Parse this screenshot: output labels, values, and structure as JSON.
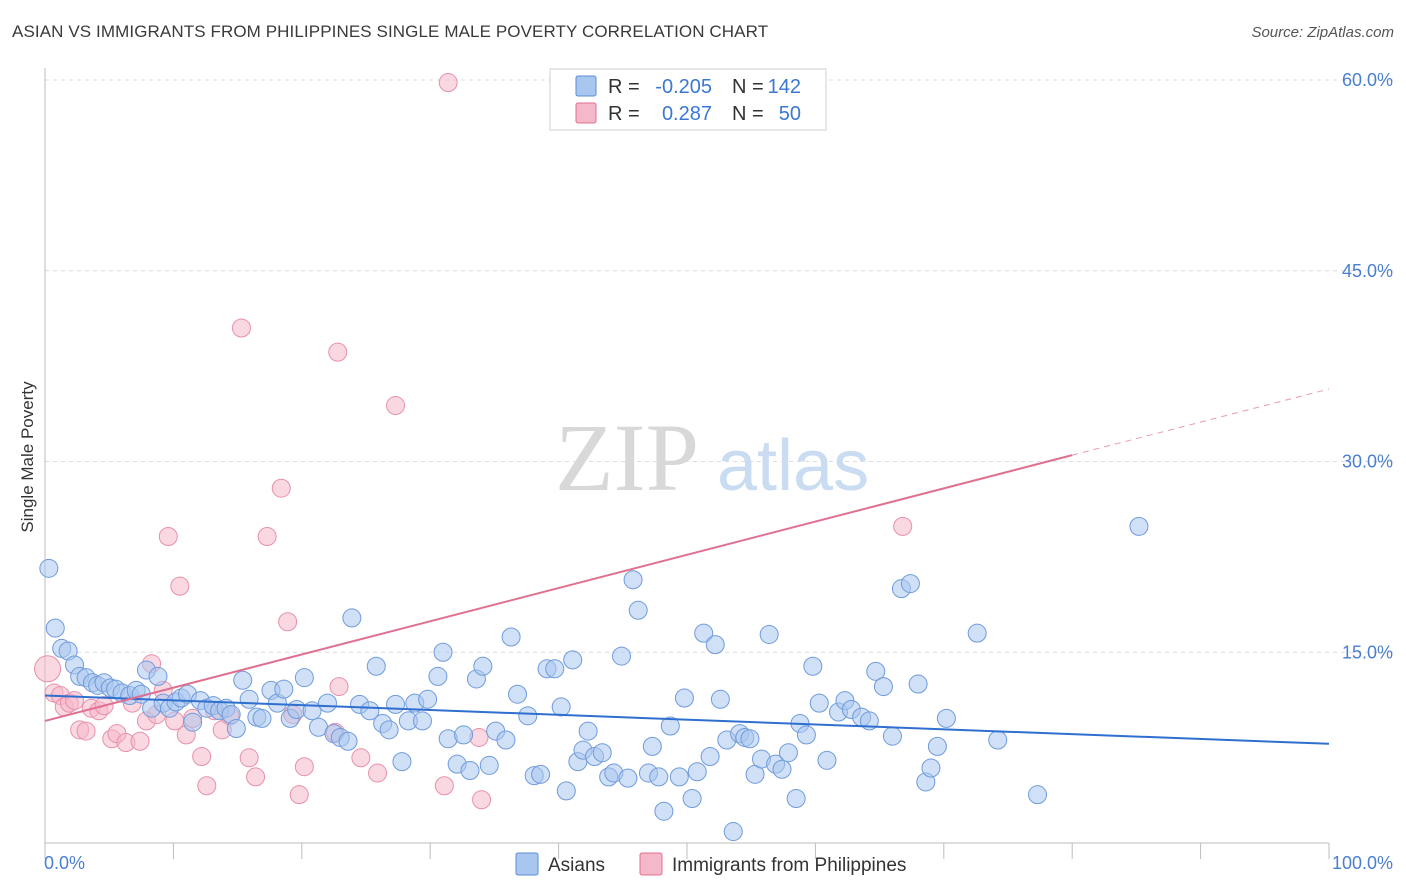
{
  "title": "ASIAN VS IMMIGRANTS FROM PHILIPPINES SINGLE MALE POVERTY CORRELATION CHART",
  "source": "Source: ZipAtlas.com",
  "watermark": {
    "zip": "ZIP",
    "atlas": "atlas"
  },
  "colors": {
    "blue": "#5b8fd9",
    "blue_fill": "#a9c6ee",
    "pink": "#e0708f",
    "pink_fill": "#f5b8ca",
    "tick_text": "#4a7fd0"
  },
  "legend_top": [
    {
      "r_label": "R =",
      "r_value": "-0.205",
      "n_label": "N =",
      "n_value": "142"
    },
    {
      "r_label": "R =",
      "r_value": "0.287",
      "n_label": "N =",
      "n_value": "50"
    }
  ],
  "legend_bottom": [
    "Asians",
    "Immigrants from Philippines"
  ],
  "chart_data": {
    "type": "scatter",
    "title": "ASIAN VS IMMIGRANTS FROM PHILIPPINES SINGLE MALE POVERTY CORRELATION CHART",
    "xlabel": "",
    "ylabel": "Single Male Poverty",
    "xlim": [
      0,
      100
    ],
    "ylim": [
      0,
      60
    ],
    "x_tick_labels": [
      "0.0%",
      "100.0%"
    ],
    "y_ticks": [
      15,
      30,
      45,
      60
    ],
    "y_tick_labels": [
      "15.0%",
      "30.0%",
      "45.0%",
      "60.0%"
    ],
    "grid": true,
    "legend_position": "top-center",
    "series": [
      {
        "name": "Asians",
        "r": -0.205,
        "n": 142,
        "trend": {
          "x0": 0,
          "y0": 11.6,
          "x1": 100,
          "y1": 7.8
        },
        "points": [
          [
            0.3,
            21.6
          ],
          [
            0.8,
            16.9
          ],
          [
            1.3,
            15.3
          ],
          [
            1.8,
            15.1
          ],
          [
            2.3,
            14.0
          ],
          [
            2.7,
            13.1
          ],
          [
            3.2,
            13.0
          ],
          [
            3.7,
            12.6
          ],
          [
            4.1,
            12.4
          ],
          [
            4.6,
            12.6
          ],
          [
            5.1,
            12.2
          ],
          [
            5.5,
            12.1
          ],
          [
            6.0,
            11.8
          ],
          [
            6.6,
            11.6
          ],
          [
            7.1,
            12.0
          ],
          [
            7.5,
            11.7
          ],
          [
            7.9,
            13.6
          ],
          [
            8.3,
            10.6
          ],
          [
            8.8,
            13.1
          ],
          [
            9.2,
            11.0
          ],
          [
            9.7,
            10.6
          ],
          [
            10.2,
            11.1
          ],
          [
            10.6,
            11.4
          ],
          [
            11.1,
            11.7
          ],
          [
            11.5,
            9.5
          ],
          [
            12.1,
            11.2
          ],
          [
            12.6,
            10.6
          ],
          [
            13.1,
            10.8
          ],
          [
            13.6,
            10.4
          ],
          [
            14.1,
            10.6
          ],
          [
            14.5,
            10.1
          ],
          [
            14.9,
            9.0
          ],
          [
            15.4,
            12.8
          ],
          [
            15.9,
            11.3
          ],
          [
            16.5,
            9.9
          ],
          [
            16.9,
            9.8
          ],
          [
            17.6,
            12.0
          ],
          [
            18.1,
            11.0
          ],
          [
            18.6,
            12.1
          ],
          [
            19.1,
            9.8
          ],
          [
            19.6,
            10.5
          ],
          [
            20.2,
            13.0
          ],
          [
            20.8,
            10.4
          ],
          [
            21.3,
            9.1
          ],
          [
            22.0,
            11.0
          ],
          [
            22.5,
            8.6
          ],
          [
            23.0,
            8.3
          ],
          [
            23.6,
            8.0
          ],
          [
            23.9,
            17.7
          ],
          [
            24.5,
            10.9
          ],
          [
            25.3,
            10.4
          ],
          [
            25.8,
            13.9
          ],
          [
            26.3,
            9.4
          ],
          [
            26.8,
            8.9
          ],
          [
            27.3,
            10.9
          ],
          [
            27.8,
            6.4
          ],
          [
            28.3,
            9.6
          ],
          [
            28.8,
            11.0
          ],
          [
            29.4,
            9.6
          ],
          [
            29.8,
            11.3
          ],
          [
            30.6,
            13.1
          ],
          [
            31.0,
            15.0
          ],
          [
            31.4,
            8.2
          ],
          [
            32.1,
            6.2
          ],
          [
            32.6,
            8.5
          ],
          [
            33.1,
            5.7
          ],
          [
            33.6,
            12.9
          ],
          [
            34.1,
            13.9
          ],
          [
            34.6,
            6.1
          ],
          [
            35.1,
            8.8
          ],
          [
            35.9,
            8.1
          ],
          [
            36.3,
            16.2
          ],
          [
            36.8,
            11.7
          ],
          [
            37.6,
            10.0
          ],
          [
            38.1,
            5.3
          ],
          [
            38.6,
            5.4
          ],
          [
            39.1,
            13.7
          ],
          [
            39.7,
            13.7
          ],
          [
            40.2,
            10.7
          ],
          [
            40.6,
            4.1
          ],
          [
            41.1,
            14.4
          ],
          [
            41.5,
            6.4
          ],
          [
            41.9,
            7.3
          ],
          [
            42.3,
            8.8
          ],
          [
            42.8,
            6.8
          ],
          [
            43.4,
            7.1
          ],
          [
            43.9,
            5.2
          ],
          [
            44.3,
            5.5
          ],
          [
            44.9,
            14.7
          ],
          [
            45.4,
            5.1
          ],
          [
            45.8,
            20.7
          ],
          [
            46.2,
            18.3
          ],
          [
            47.0,
            5.5
          ],
          [
            47.3,
            7.6
          ],
          [
            47.8,
            5.2
          ],
          [
            48.2,
            2.5
          ],
          [
            48.7,
            9.2
          ],
          [
            49.4,
            5.2
          ],
          [
            49.8,
            11.4
          ],
          [
            50.4,
            3.5
          ],
          [
            50.8,
            5.6
          ],
          [
            51.3,
            16.5
          ],
          [
            51.8,
            6.8
          ],
          [
            52.2,
            15.6
          ],
          [
            52.6,
            11.3
          ],
          [
            53.1,
            8.1
          ],
          [
            53.6,
            0.9
          ],
          [
            54.1,
            8.6
          ],
          [
            54.5,
            8.3
          ],
          [
            54.9,
            8.2
          ],
          [
            55.3,
            5.4
          ],
          [
            55.8,
            6.6
          ],
          [
            56.4,
            16.4
          ],
          [
            56.9,
            6.2
          ],
          [
            57.4,
            5.8
          ],
          [
            57.9,
            7.1
          ],
          [
            58.5,
            3.5
          ],
          [
            58.8,
            9.4
          ],
          [
            59.3,
            8.5
          ],
          [
            59.8,
            13.9
          ],
          [
            60.3,
            11.0
          ],
          [
            60.9,
            6.5
          ],
          [
            61.8,
            10.3
          ],
          [
            62.3,
            11.2
          ],
          [
            62.8,
            10.5
          ],
          [
            63.6,
            9.9
          ],
          [
            64.2,
            9.6
          ],
          [
            64.7,
            13.5
          ],
          [
            65.3,
            12.3
          ],
          [
            66.0,
            8.4
          ],
          [
            66.7,
            20.0
          ],
          [
            67.4,
            20.4
          ],
          [
            68.0,
            12.5
          ],
          [
            68.6,
            4.8
          ],
          [
            69.0,
            5.9
          ],
          [
            69.5,
            7.6
          ],
          [
            70.2,
            9.8
          ],
          [
            72.6,
            16.5
          ],
          [
            74.2,
            8.1
          ],
          [
            77.3,
            3.8
          ],
          [
            85.2,
            24.9
          ]
        ]
      },
      {
        "name": "Immigrants from Philippines",
        "r": 0.287,
        "n": 50,
        "trend": {
          "x0": 0,
          "y0": 9.6,
          "x1": 80,
          "y1": 30.5,
          "dash_to_x": 100,
          "dash_to_y": 35.7
        },
        "points": [
          [
            0.2,
            13.7
          ],
          [
            0.7,
            11.8
          ],
          [
            1.2,
            11.6
          ],
          [
            1.5,
            10.7
          ],
          [
            1.9,
            11.0
          ],
          [
            2.3,
            11.2
          ],
          [
            2.7,
            8.9
          ],
          [
            3.2,
            8.8
          ],
          [
            3.6,
            10.6
          ],
          [
            4.2,
            10.4
          ],
          [
            4.6,
            10.8
          ],
          [
            5.2,
            8.2
          ],
          [
            5.6,
            8.6
          ],
          [
            6.3,
            7.9
          ],
          [
            6.8,
            11.0
          ],
          [
            7.4,
            8.0
          ],
          [
            7.9,
            9.6
          ],
          [
            8.3,
            14.1
          ],
          [
            8.7,
            10.1
          ],
          [
            9.2,
            12.0
          ],
          [
            9.6,
            24.1
          ],
          [
            10.1,
            9.6
          ],
          [
            10.5,
            20.2
          ],
          [
            11.0,
            8.5
          ],
          [
            11.5,
            9.8
          ],
          [
            12.2,
            6.8
          ],
          [
            12.6,
            4.5
          ],
          [
            13.2,
            10.4
          ],
          [
            13.8,
            8.9
          ],
          [
            14.4,
            10.0
          ],
          [
            15.3,
            40.5
          ],
          [
            15.9,
            6.7
          ],
          [
            16.4,
            5.2
          ],
          [
            17.3,
            24.1
          ],
          [
            18.4,
            27.9
          ],
          [
            18.9,
            17.4
          ],
          [
            19.3,
            10.1
          ],
          [
            19.8,
            3.8
          ],
          [
            20.2,
            6.0
          ],
          [
            22.8,
            38.6
          ],
          [
            22.6,
            8.7
          ],
          [
            22.9,
            12.3
          ],
          [
            24.6,
            6.7
          ],
          [
            25.9,
            5.5
          ],
          [
            27.3,
            34.4
          ],
          [
            31.4,
            59.8
          ],
          [
            31.1,
            4.5
          ],
          [
            34.0,
            3.4
          ],
          [
            33.8,
            8.3
          ],
          [
            66.8,
            24.9
          ]
        ]
      }
    ]
  }
}
